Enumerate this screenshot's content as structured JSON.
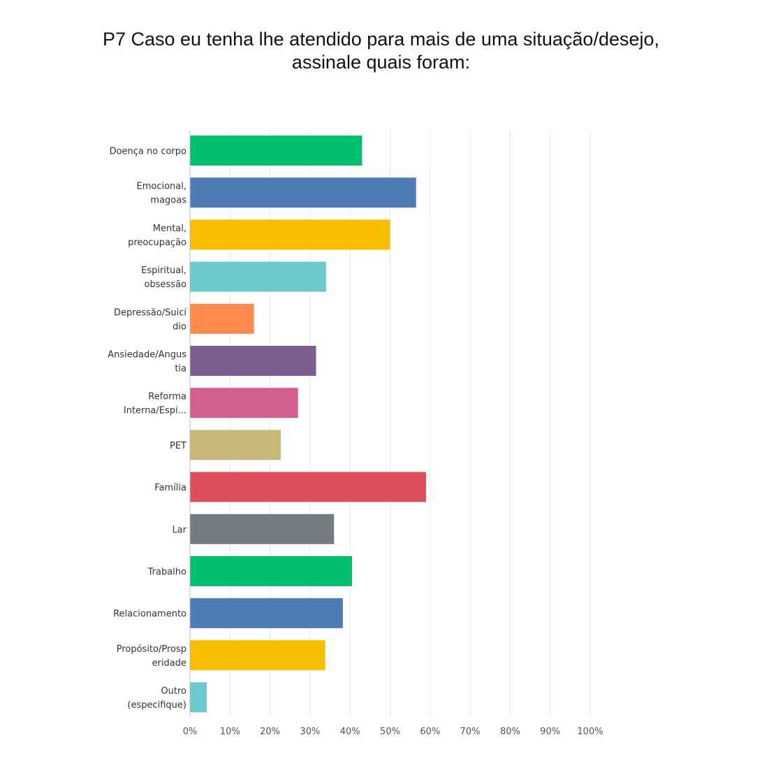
{
  "chart_data": {
    "type": "bar",
    "orientation": "horizontal",
    "title_lines": [
      "P7 Caso eu tenha lhe atendido para mais de uma situação/desejo,",
      "assinale quais foram:"
    ],
    "categories": [
      [
        "Doença no corpo"
      ],
      [
        "Emocional,",
        "magoas"
      ],
      [
        "Mental,",
        "preocupação"
      ],
      [
        "Espiritual,",
        "obsessão"
      ],
      [
        "Depressão/Suicí",
        "dio"
      ],
      [
        "Ansiedade/Angus",
        "tia"
      ],
      [
        "Reforma",
        "Interna/Espi..."
      ],
      [
        "PET"
      ],
      [
        "Família"
      ],
      [
        "Lar"
      ],
      [
        "Trabalho"
      ],
      [
        "Relacionamento"
      ],
      [
        "Propósito/Prosp",
        "eridade"
      ],
      [
        "Outro",
        "(especifique)"
      ]
    ],
    "values": [
      43,
      56.5,
      50,
      34,
      16,
      31.5,
      27,
      22.7,
      59,
      36,
      40.5,
      38.2,
      33.8,
      4.2
    ],
    "colors": [
      "#00bf6f",
      "#507cb6",
      "#f9be00",
      "#6bc8cd",
      "#ff8b4f",
      "#7d5e90",
      "#d25f90",
      "#c7b879",
      "#dd4f5b",
      "#757d82",
      "#00bf6f",
      "#507cb6",
      "#f9be00",
      "#6bc8cd"
    ],
    "xlim": [
      0,
      100
    ],
    "xticks": [
      0,
      10,
      20,
      30,
      40,
      50,
      60,
      70,
      80,
      90,
      100
    ],
    "xtick_labels": [
      "0%",
      "10%",
      "20%",
      "30%",
      "40%",
      "50%",
      "60%",
      "70%",
      "80%",
      "90%",
      "100%"
    ],
    "grid": true,
    "legend": "none"
  }
}
